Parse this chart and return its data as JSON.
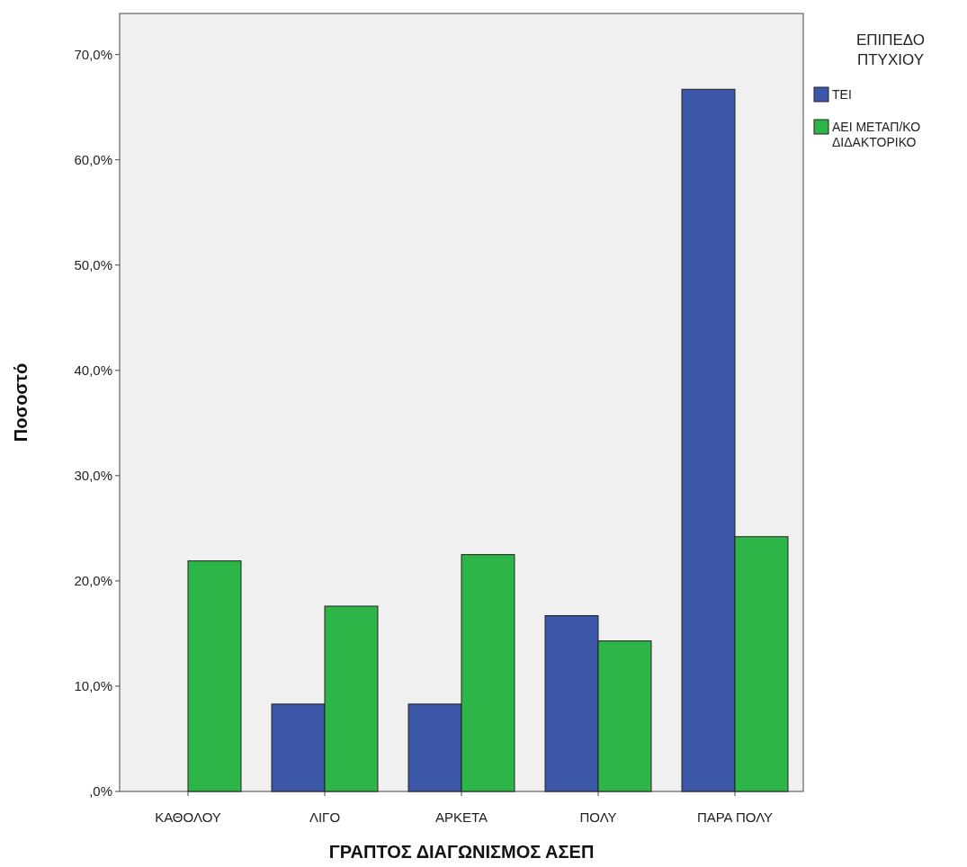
{
  "chart_data": {
    "type": "bar",
    "xlabel": "ΓΡΑΠΤΟΣ ΔΙΑΓΩΝΙΣΜΟΣ ΑΣΕΠ",
    "ylabel": "Ποσοστό",
    "legend_title": "ΕΠΙΠΕΔΟ ΠΤΥΧΙΟΥ",
    "legend": "right",
    "categories": [
      "ΚΑΘΟΛΟΥ",
      "ΛΙΓΟ",
      "ΑΡΚΕΤΑ",
      "ΠΟΛΥ",
      "ΠΑΡΑ ΠΟΛΥ"
    ],
    "series": [
      {
        "name": "ΤΕΙ",
        "color": "#3c56a8",
        "values": [
          0,
          8.3,
          8.3,
          16.7,
          66.7
        ]
      },
      {
        "name": "ΑΕΙ ΜΕΤΑΠ/ΚΟ ΔΙΔΑΚΤΟΡΙΚΟ",
        "color": "#2db548",
        "values": [
          21.9,
          17.6,
          22.5,
          14.3,
          24.2
        ]
      }
    ],
    "ylim": [
      0,
      73.9
    ],
    "yticks": [
      {
        "value": 0,
        "label": ",0%"
      },
      {
        "value": 10,
        "label": "10,0%"
      },
      {
        "value": 20,
        "label": "20,0%"
      },
      {
        "value": 30,
        "label": "30,0%"
      },
      {
        "value": 40,
        "label": "40,0%"
      },
      {
        "value": 50,
        "label": "50,0%"
      },
      {
        "value": 60,
        "label": "60,0%"
      },
      {
        "value": 70,
        "label": "70,0%"
      }
    ],
    "grid": false
  }
}
